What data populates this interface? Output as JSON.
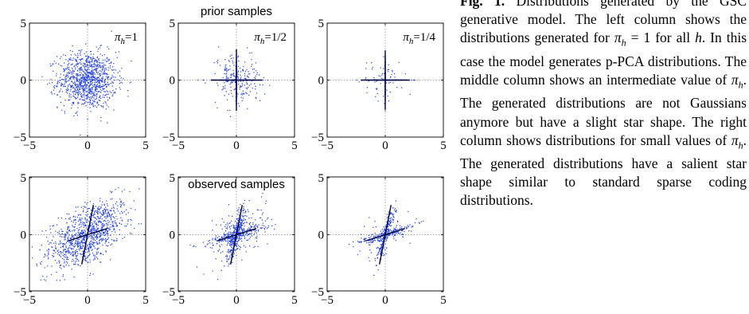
{
  "figure": {
    "row_titles": [
      "prior samples",
      "observed samples"
    ],
    "columns": [
      {
        "pi_label": "=1"
      },
      {
        "pi_label": "=1/2"
      },
      {
        "pi_label": "=1/4"
      }
    ],
    "pi_symbol": "π",
    "pi_subscript": "h",
    "point_color": "#1f3fe0",
    "line_color": "#000033"
  },
  "chart_data": [
    {
      "type": "scatter",
      "panel": "prior, pi_h=1",
      "title": "",
      "xlim": [
        -5,
        5
      ],
      "ylim": [
        -5,
        5
      ],
      "xticks": [
        -5,
        0,
        5
      ],
      "yticks": [
        -5,
        0,
        5
      ],
      "grid": "dotted zero lines",
      "distribution": "isotropic gaussian",
      "sigma": 1.25
    },
    {
      "type": "scatter",
      "panel": "prior, pi_h=1/2",
      "title": "prior samples",
      "xlim": [
        -5,
        5
      ],
      "ylim": [
        -5,
        5
      ],
      "xticks": [
        -5,
        0,
        5
      ],
      "yticks": [
        -5,
        0,
        5
      ],
      "distribution": "star (axis-aligned)"
    },
    {
      "type": "scatter",
      "panel": "prior, pi_h=1/4",
      "title": "",
      "xlim": [
        -5,
        5
      ],
      "ylim": [
        -5,
        5
      ],
      "xticks": [
        -5,
        0,
        5
      ],
      "yticks": [
        -5,
        0,
        5
      ],
      "distribution": "sparse star (axis-aligned)",
      "lines": [
        {
          "x": [
            -2,
            2
          ],
          "y": [
            0,
            0
          ]
        },
        {
          "x": [
            0,
            0
          ],
          "y": [
            -2.6,
            2.6
          ]
        }
      ]
    },
    {
      "type": "scatter",
      "panel": "observed, pi_h=1",
      "title": "",
      "xlim": [
        -5,
        5
      ],
      "ylim": [
        -5,
        5
      ],
      "xticks": [
        -5,
        0,
        5
      ],
      "yticks": [
        -5,
        0,
        5
      ],
      "distribution": "correlated gaussian",
      "lines": [
        {
          "x": [
            -1.6,
            1.6
          ],
          "y": [
            -0.6,
            0.6
          ]
        },
        {
          "x": [
            -0.5,
            0.5
          ],
          "y": [
            -2.5,
            2.5
          ]
        }
      ]
    },
    {
      "type": "scatter",
      "panel": "observed, pi_h=1/2",
      "title": "observed samples",
      "xlim": [
        -5,
        5
      ],
      "ylim": [
        -5,
        5
      ],
      "xticks": [
        -5,
        0,
        5
      ],
      "yticks": [
        -5,
        0,
        5
      ],
      "distribution": "slanted star",
      "lines": [
        {
          "x": [
            -1.6,
            1.6
          ],
          "y": [
            -0.6,
            0.6
          ]
        },
        {
          "x": [
            -0.5,
            0.5
          ],
          "y": [
            -2.5,
            2.5
          ]
        }
      ]
    },
    {
      "type": "scatter",
      "panel": "observed, pi_h=1/4",
      "title": "",
      "xlim": [
        -5,
        5
      ],
      "ylim": [
        -5,
        5
      ],
      "xticks": [
        -5,
        0,
        5
      ],
      "yticks": [
        -5,
        0,
        5
      ],
      "distribution": "sparse slanted star",
      "lines": [
        {
          "x": [
            -1.6,
            1.6
          ],
          "y": [
            -0.6,
            0.6
          ]
        },
        {
          "x": [
            -0.5,
            0.5
          ],
          "y": [
            -2.5,
            2.5
          ]
        }
      ]
    }
  ],
  "caption": {
    "label": "Fig. 1.",
    "p1": "Distributions generated by the GSC generative model. The left column shows the distributions generated for",
    "p2": "for all",
    "p3": ". In this case the model generates p-PCA distributions. The middle column shows an intermediate value of",
    "p4": ". The generated distributions are not Gaussians anymore but have a slight star shape. The right column shows distributions for small values of",
    "p5": ". The generated distributions have a salient star shape similar to standard sparse coding distributions.",
    "eq1": "= 1",
    "h": "h"
  }
}
